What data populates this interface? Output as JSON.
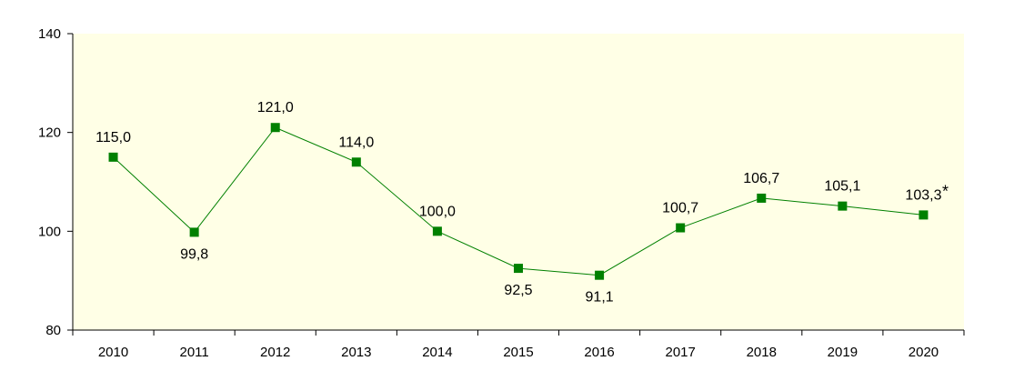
{
  "chart_data": {
    "type": "line",
    "title": "",
    "xlabel": "",
    "ylabel": "",
    "categories": [
      "2010",
      "2011",
      "2012",
      "2013",
      "2014",
      "2015",
      "2016",
      "2017",
      "2018",
      "2019",
      "2020"
    ],
    "series": [
      {
        "values": [
          115.0,
          99.8,
          121.0,
          114.0,
          100.0,
          92.5,
          91.1,
          100.7,
          106.7,
          105.1,
          103.3
        ],
        "labels": [
          "115,0",
          "99,8",
          "121,0",
          "114,0",
          "100,0",
          "92,5",
          "91,1",
          "100,7",
          "106,7",
          "105,1",
          "103,3"
        ],
        "label_position": [
          "above",
          "below",
          "above",
          "above",
          "above",
          "below",
          "below",
          "above",
          "above",
          "above",
          "above"
        ],
        "color": "#008000",
        "marker": "square"
      }
    ],
    "annotations": [
      {
        "category": "2020",
        "text": "*"
      }
    ],
    "ylim": [
      80,
      140
    ],
    "yticks": [
      "80",
      "100",
      "120",
      "140"
    ],
    "plot_background": "#ffffe6",
    "grid": false,
    "legend": "none"
  }
}
